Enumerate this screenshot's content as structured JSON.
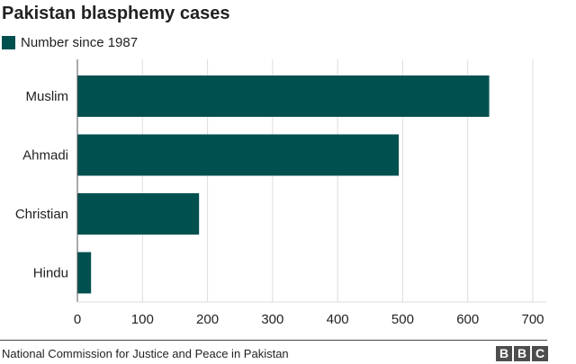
{
  "colors": {
    "bar": "#005050",
    "grid": "#dddddd",
    "axis": "#555555",
    "text": "#222222"
  },
  "footer": {
    "source": "National Commission for Justice and Peace in Pakistan",
    "logo_letters": [
      "B",
      "B",
      "C"
    ]
  },
  "chart_data": {
    "type": "bar",
    "orientation": "horizontal",
    "title": "Pakistan blasphemy cases",
    "categories": [
      "Muslim",
      "Ahmadi",
      "Christian",
      "Hindu"
    ],
    "series": [
      {
        "name": "Number since 1987",
        "values": [
          633,
          494,
          187,
          21
        ]
      }
    ],
    "xlim": [
      0,
      700
    ],
    "xticks": [
      0,
      100,
      200,
      300,
      400,
      500,
      600,
      700
    ],
    "grid": true,
    "legend": "top-left"
  }
}
